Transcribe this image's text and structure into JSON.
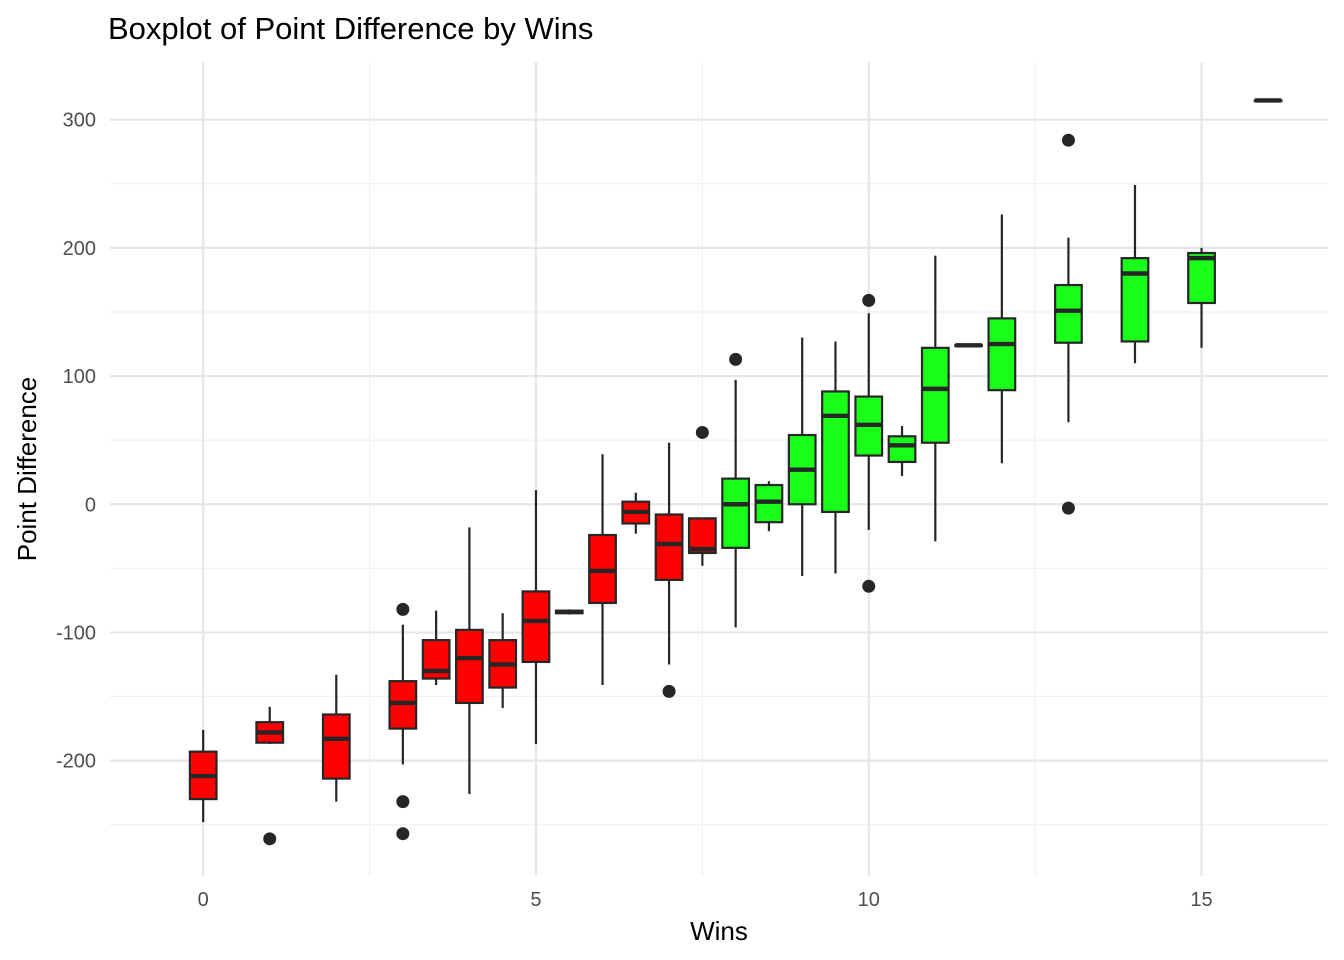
{
  "chart_data": {
    "type": "boxplot",
    "title": "Boxplot of Point Difference by Wins",
    "xlabel": "Wins",
    "ylabel": "Point Difference",
    "xlim": [
      -1.4,
      16.9
    ],
    "ylim": [
      -290,
      345
    ],
    "x_ticks": [
      0,
      5,
      10,
      15
    ],
    "x_tick_labels": [
      "0",
      "5",
      "10",
      "15"
    ],
    "y_ticks": [
      -200,
      -100,
      0,
      100,
      200,
      300
    ],
    "y_tick_labels": [
      "-200",
      "-100",
      "0",
      "100",
      "200",
      "300"
    ],
    "grid": true,
    "legend": "none",
    "fill_colors": {
      "loss": "#ff0000",
      "win": "#1aff1a"
    },
    "outline_color": "#262626",
    "boxes": [
      {
        "x": 0,
        "lower": -248,
        "q1": -230,
        "median": -212,
        "q3": -193,
        "upper": -176,
        "outliers": [],
        "fill": "loss"
      },
      {
        "x": 1,
        "lower": -187,
        "q1": -186,
        "median": -178,
        "q3": -170,
        "upper": -158,
        "outliers": [
          -261
        ],
        "fill": "loss"
      },
      {
        "x": 2,
        "lower": -232,
        "q1": -214,
        "median": -183,
        "q3": -164,
        "upper": -133,
        "outliers": [],
        "fill": "loss"
      },
      {
        "x": 3,
        "lower": -203,
        "q1": -175,
        "median": -155,
        "q3": -138,
        "upper": -94,
        "outliers": [
          -82,
          -232,
          -257
        ],
        "fill": "loss"
      },
      {
        "x": 3.5,
        "lower": -141,
        "q1": -136,
        "median": -130,
        "q3": -106,
        "upper": -83,
        "outliers": [],
        "fill": "loss"
      },
      {
        "x": 4,
        "lower": -226,
        "q1": -155,
        "median": -120,
        "q3": -98,
        "upper": -18,
        "outliers": [],
        "fill": "loss"
      },
      {
        "x": 4.5,
        "lower": -159,
        "q1": -143,
        "median": -125,
        "q3": -106,
        "upper": -85,
        "outliers": [],
        "fill": "loss"
      },
      {
        "x": 5,
        "lower": -187,
        "q1": -123,
        "median": -91,
        "q3": -68,
        "upper": 11,
        "outliers": [],
        "fill": "loss"
      },
      {
        "x": 5.5,
        "lower": -86,
        "q1": -85,
        "median": -84,
        "q3": -83,
        "upper": -82,
        "outliers": [],
        "fill": "loss"
      },
      {
        "x": 6,
        "lower": -141,
        "q1": -77,
        "median": -52,
        "q3": -24,
        "upper": 39,
        "outliers": [],
        "fill": "loss"
      },
      {
        "x": 6.5,
        "lower": -23,
        "q1": -15,
        "median": -6,
        "q3": 2,
        "upper": 9,
        "outliers": [],
        "fill": "loss"
      },
      {
        "x": 7,
        "lower": -125,
        "q1": -59,
        "median": -31,
        "q3": -8,
        "upper": 48,
        "outliers": [
          -146
        ],
        "fill": "loss"
      },
      {
        "x": 7.5,
        "lower": -48,
        "q1": -38,
        "median": -35,
        "q3": -11,
        "upper": -11,
        "outliers": [
          56
        ],
        "fill": "loss"
      },
      {
        "x": 8,
        "lower": -96,
        "q1": -34,
        "median": 0,
        "q3": 20,
        "upper": 97,
        "outliers": [
          113
        ],
        "fill": "win"
      },
      {
        "x": 8.5,
        "lower": -21,
        "q1": -14,
        "median": 2,
        "q3": 15,
        "upper": 18,
        "outliers": [],
        "fill": "win"
      },
      {
        "x": 9,
        "lower": -56,
        "q1": 0,
        "median": 27,
        "q3": 54,
        "upper": 130,
        "outliers": [],
        "fill": "win"
      },
      {
        "x": 9.5,
        "lower": -54,
        "q1": -6,
        "median": 69,
        "q3": 88,
        "upper": 127,
        "outliers": [],
        "fill": "win"
      },
      {
        "x": 10,
        "lower": -20,
        "q1": 38,
        "median": 62,
        "q3": 84,
        "upper": 149,
        "outliers": [
          159,
          -64
        ],
        "fill": "win"
      },
      {
        "x": 10.5,
        "lower": 22,
        "q1": 33,
        "median": 46,
        "q3": 53,
        "upper": 61,
        "outliers": [],
        "fill": "win"
      },
      {
        "x": 11,
        "lower": -29,
        "q1": 48,
        "median": 90,
        "q3": 122,
        "upper": 194,
        "outliers": [],
        "fill": "win"
      },
      {
        "x": 11.5,
        "lower": 124,
        "q1": 124,
        "median": 124,
        "q3": 124,
        "upper": 124,
        "outliers": [],
        "fill": "win"
      },
      {
        "x": 12,
        "lower": 32,
        "q1": 89,
        "median": 125,
        "q3": 145,
        "upper": 226,
        "outliers": [],
        "fill": "win"
      },
      {
        "x": 13,
        "lower": 64,
        "q1": 126,
        "median": 151,
        "q3": 171,
        "upper": 208,
        "outliers": [
          284,
          -3
        ],
        "fill": "win"
      },
      {
        "x": 14,
        "lower": 110,
        "q1": 127,
        "median": 180,
        "q3": 192,
        "upper": 249,
        "outliers": [],
        "fill": "win"
      },
      {
        "x": 15,
        "lower": 122,
        "q1": 157,
        "median": 192,
        "q3": 196,
        "upper": 200,
        "outliers": [],
        "fill": "win"
      },
      {
        "x": 16,
        "lower": 315,
        "q1": 315,
        "median": 315,
        "q3": 315,
        "upper": 315,
        "outliers": [],
        "fill": "win"
      }
    ]
  }
}
